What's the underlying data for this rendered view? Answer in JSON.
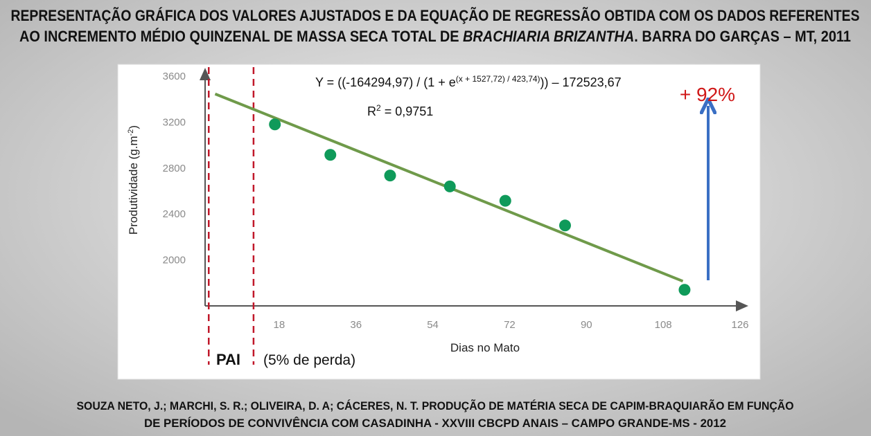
{
  "title": {
    "line1": "REPRESENTAÇÃO GRÁFICA DOS VALORES AJUSTADOS E DA EQUAÇÃO DE REGRESSÃO OBTIDA COM OS DADOS REFERENTES",
    "line2_prefix": "AO INCREMENTO MÉDIO QUINZENAL DE MASSA SECA TOTAL DE ",
    "line2_italic": "BRACHIARIA BRIZANTHA",
    "line2_suffix": ". BARRA DO GARÇAS – MT, 2011"
  },
  "reference": {
    "line1": "SOUZA NETO, J.; MARCHI, S. R.; OLIVEIRA, D. A; CÁCERES, N. T. PRODUÇÃO DE MATÉRIA SECA DE CAPIM-BRAQUIARÃO EM FUNÇÃO",
    "line2": "DE PERÍODOS DE CONVIVÊNCIA COM CASADINHA -  XXVIII CBCPD ANAIS – CAMPO GRANDE-MS - 2012"
  },
  "chart_data": {
    "type": "scatter",
    "xlabel": "Dias no Mato",
    "ylabel": "Produtividade (g.m-2)",
    "ylabel_main": "Produtividade (g.m",
    "ylabel_sup": "-2",
    "ylabel_end": ")",
    "xlim": [
      0,
      126
    ],
    "ylim": [
      1600,
      3600
    ],
    "xticks": [
      "18",
      "36",
      "54",
      "72",
      "90",
      "108",
      "126"
    ],
    "yticks": [
      "3600",
      "3200",
      "2800",
      "2400",
      "2000"
    ],
    "points": [
      {
        "x": 17,
        "y": 3180
      },
      {
        "x": 30,
        "y": 2915
      },
      {
        "x": 44,
        "y": 2735
      },
      {
        "x": 58,
        "y": 2640
      },
      {
        "x": 71,
        "y": 2515
      },
      {
        "x": 85,
        "y": 2300
      },
      {
        "x": 113,
        "y": 1740
      }
    ],
    "fit_line": {
      "x": [
        3,
        112.6
      ],
      "y": [
        3445,
        1815
      ]
    },
    "equation": {
      "main": "Y = ((-164294,97) / (1 + e",
      "exponent": "(x + 1527,72) / 423,74)",
      "tail": ")) – 172523,67"
    },
    "r2": {
      "label": "R",
      "sup": "2",
      "value": " = 0,9751"
    },
    "pai_lines_x": [
      1.5,
      12
    ],
    "pai_label": "PAI",
    "pai_note": "(5% de perda)",
    "gain_label": "+ 92%",
    "colors": {
      "points": "#0f9a5a",
      "fit": "#6f9a4a",
      "pai": "#c0182a",
      "arrow": "#3a6fc4",
      "gain": "#d01818"
    }
  }
}
